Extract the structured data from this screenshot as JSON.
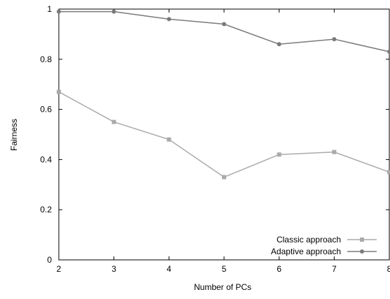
{
  "chart_data": {
    "type": "line",
    "xlabel": "Number of PCs",
    "ylabel": "Fairness",
    "xlim": [
      2,
      8
    ],
    "ylim": [
      0,
      1
    ],
    "x_ticks": [
      "2",
      "3",
      "4",
      "5",
      "6",
      "7",
      "8"
    ],
    "y_ticks": [
      "0",
      "0.2",
      "0.4",
      "0.6",
      "0.8",
      "1"
    ],
    "grid": false,
    "legend_position": "bottom-right",
    "x": [
      2,
      3,
      4,
      5,
      6,
      7,
      8
    ],
    "series": [
      {
        "name": "Classic approach",
        "marker": "square",
        "color": "#aaaaaa",
        "values": [
          0.67,
          0.55,
          0.48,
          0.33,
          0.42,
          0.43,
          0.35
        ]
      },
      {
        "name": "Adaptive approach",
        "marker": "circle",
        "color": "#7a7a7a",
        "values": [
          0.99,
          0.99,
          0.96,
          0.94,
          0.86,
          0.88,
          0.83
        ]
      }
    ]
  }
}
